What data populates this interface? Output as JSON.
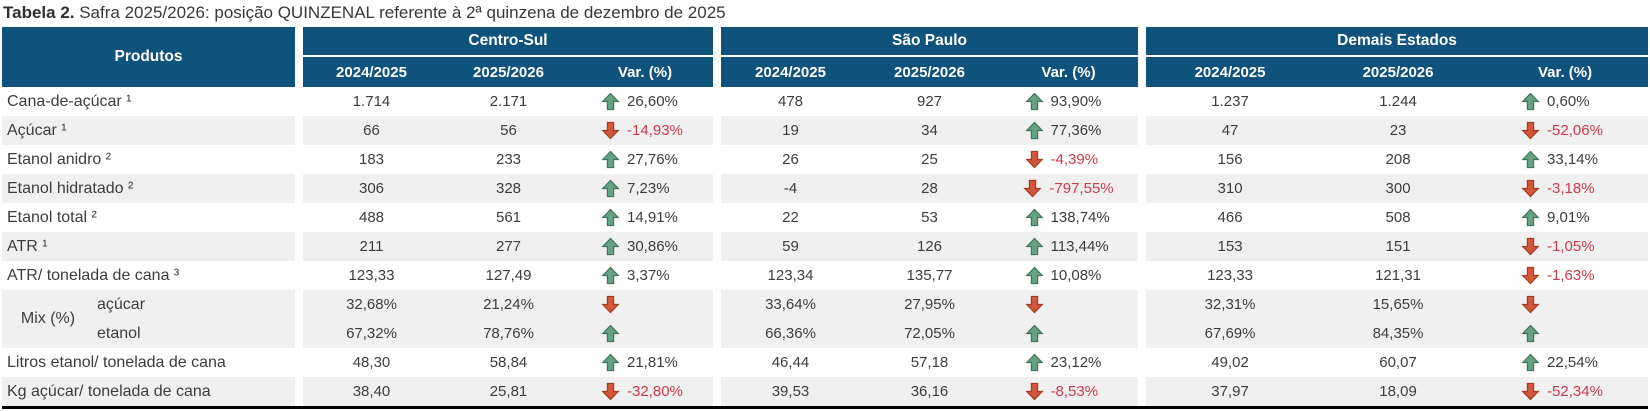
{
  "title": {
    "prefix": "Tabela 2.",
    "text": " Safra 2025/2026: posição QUINZENAL referente à 2ª quinzena de dezembro de 2025"
  },
  "colors": {
    "header_blue": "#0F527C",
    "row_shade": "#F0F0F0",
    "negative_text": "#CC3A4E",
    "up_arrow": "#67A183",
    "down_arrow": "#D2573A"
  },
  "table": {
    "products_header": "Produtos",
    "mix_label": "Mix (%)",
    "groups": [
      {
        "label": "Centro-Sul",
        "columns": [
          "2024/2025",
          "2025/2026",
          "Var. (%)"
        ]
      },
      {
        "label": "São Paulo",
        "columns": [
          "2024/2025",
          "2025/2026",
          "Var. (%)"
        ]
      },
      {
        "label": "Demais Estados",
        "columns": [
          "2024/2025",
          "2025/2026",
          "Var. (%)"
        ]
      }
    ],
    "rows": [
      {
        "label": "Cana-de-açúcar ¹",
        "shade": false,
        "cells": [
          {
            "y1": "1.714",
            "y2": "2.171",
            "var": "26,60%",
            "dir": "up"
          },
          {
            "y1": "478",
            "y2": "927",
            "var": "93,90%",
            "dir": "up"
          },
          {
            "y1": "1.237",
            "y2": "1.244",
            "var": "0,60%",
            "dir": "up"
          }
        ]
      },
      {
        "label": "Açúcar ¹",
        "shade": true,
        "cells": [
          {
            "y1": "66",
            "y2": "56",
            "var": "-14,93%",
            "dir": "down"
          },
          {
            "y1": "19",
            "y2": "34",
            "var": "77,36%",
            "dir": "up"
          },
          {
            "y1": "47",
            "y2": "23",
            "var": "-52,06%",
            "dir": "down"
          }
        ]
      },
      {
        "label": "Etanol anidro ²",
        "shade": false,
        "cells": [
          {
            "y1": "183",
            "y2": "233",
            "var": "27,76%",
            "dir": "up"
          },
          {
            "y1": "26",
            "y2": "25",
            "var": "-4,39%",
            "dir": "down"
          },
          {
            "y1": "156",
            "y2": "208",
            "var": "33,14%",
            "dir": "up"
          }
        ]
      },
      {
        "label": "Etanol hidratado ²",
        "shade": true,
        "cells": [
          {
            "y1": "306",
            "y2": "328",
            "var": "7,23%",
            "dir": "up"
          },
          {
            "y1": "-4",
            "y2": "28",
            "var": "-797,55%",
            "dir": "down"
          },
          {
            "y1": "310",
            "y2": "300",
            "var": "-3,18%",
            "dir": "down"
          }
        ]
      },
      {
        "label": "Etanol total ²",
        "shade": false,
        "cells": [
          {
            "y1": "488",
            "y2": "561",
            "var": "14,91%",
            "dir": "up"
          },
          {
            "y1": "22",
            "y2": "53",
            "var": "138,74%",
            "dir": "up"
          },
          {
            "y1": "466",
            "y2": "508",
            "var": "9,01%",
            "dir": "up"
          }
        ]
      },
      {
        "label": "ATR ¹",
        "shade": true,
        "cells": [
          {
            "y1": "211",
            "y2": "277",
            "var": "30,86%",
            "dir": "up"
          },
          {
            "y1": "59",
            "y2": "126",
            "var": "113,44%",
            "dir": "up"
          },
          {
            "y1": "153",
            "y2": "151",
            "var": "-1,05%",
            "dir": "down"
          }
        ]
      },
      {
        "label": "ATR/ tonelada de cana ³",
        "shade": false,
        "cells": [
          {
            "y1": "123,33",
            "y2": "127,49",
            "var": "3,37%",
            "dir": "up"
          },
          {
            "y1": "123,34",
            "y2": "135,77",
            "var": "10,08%",
            "dir": "up"
          },
          {
            "y1": "123,33",
            "y2": "121,31",
            "var": "-1,63%",
            "dir": "down"
          }
        ]
      },
      {
        "label": "açúcar",
        "mix": true,
        "mix_first": true,
        "shade": true,
        "cells": [
          {
            "y1": "32,68%",
            "y2": "21,24%",
            "var": "",
            "dir": "down"
          },
          {
            "y1": "33,64%",
            "y2": "27,95%",
            "var": "",
            "dir": "down"
          },
          {
            "y1": "32,31%",
            "y2": "15,65%",
            "var": "",
            "dir": "down"
          }
        ]
      },
      {
        "label": "etanol",
        "mix": true,
        "mix_first": false,
        "shade": true,
        "cells": [
          {
            "y1": "67,32%",
            "y2": "78,76%",
            "var": "",
            "dir": "up"
          },
          {
            "y1": "66,36%",
            "y2": "72,05%",
            "var": "",
            "dir": "up"
          },
          {
            "y1": "67,69%",
            "y2": "84,35%",
            "var": "",
            "dir": "up"
          }
        ]
      },
      {
        "label": "Litros etanol/ tonelada de cana",
        "shade": false,
        "cells": [
          {
            "y1": "48,30",
            "y2": "58,84",
            "var": "21,81%",
            "dir": "up"
          },
          {
            "y1": "46,44",
            "y2": "57,18",
            "var": "23,12%",
            "dir": "up"
          },
          {
            "y1": "49,02",
            "y2": "60,07",
            "var": "22,54%",
            "dir": "up"
          }
        ]
      },
      {
        "label": "Kg açúcar/ tonelada de cana",
        "shade": true,
        "cells": [
          {
            "y1": "38,40",
            "y2": "25,81",
            "var": "-32,80%",
            "dir": "down"
          },
          {
            "y1": "39,53",
            "y2": "36,16",
            "var": "-8,53%",
            "dir": "down"
          },
          {
            "y1": "37,97",
            "y2": "18,09",
            "var": "-52,34%",
            "dir": "down"
          }
        ]
      }
    ]
  }
}
